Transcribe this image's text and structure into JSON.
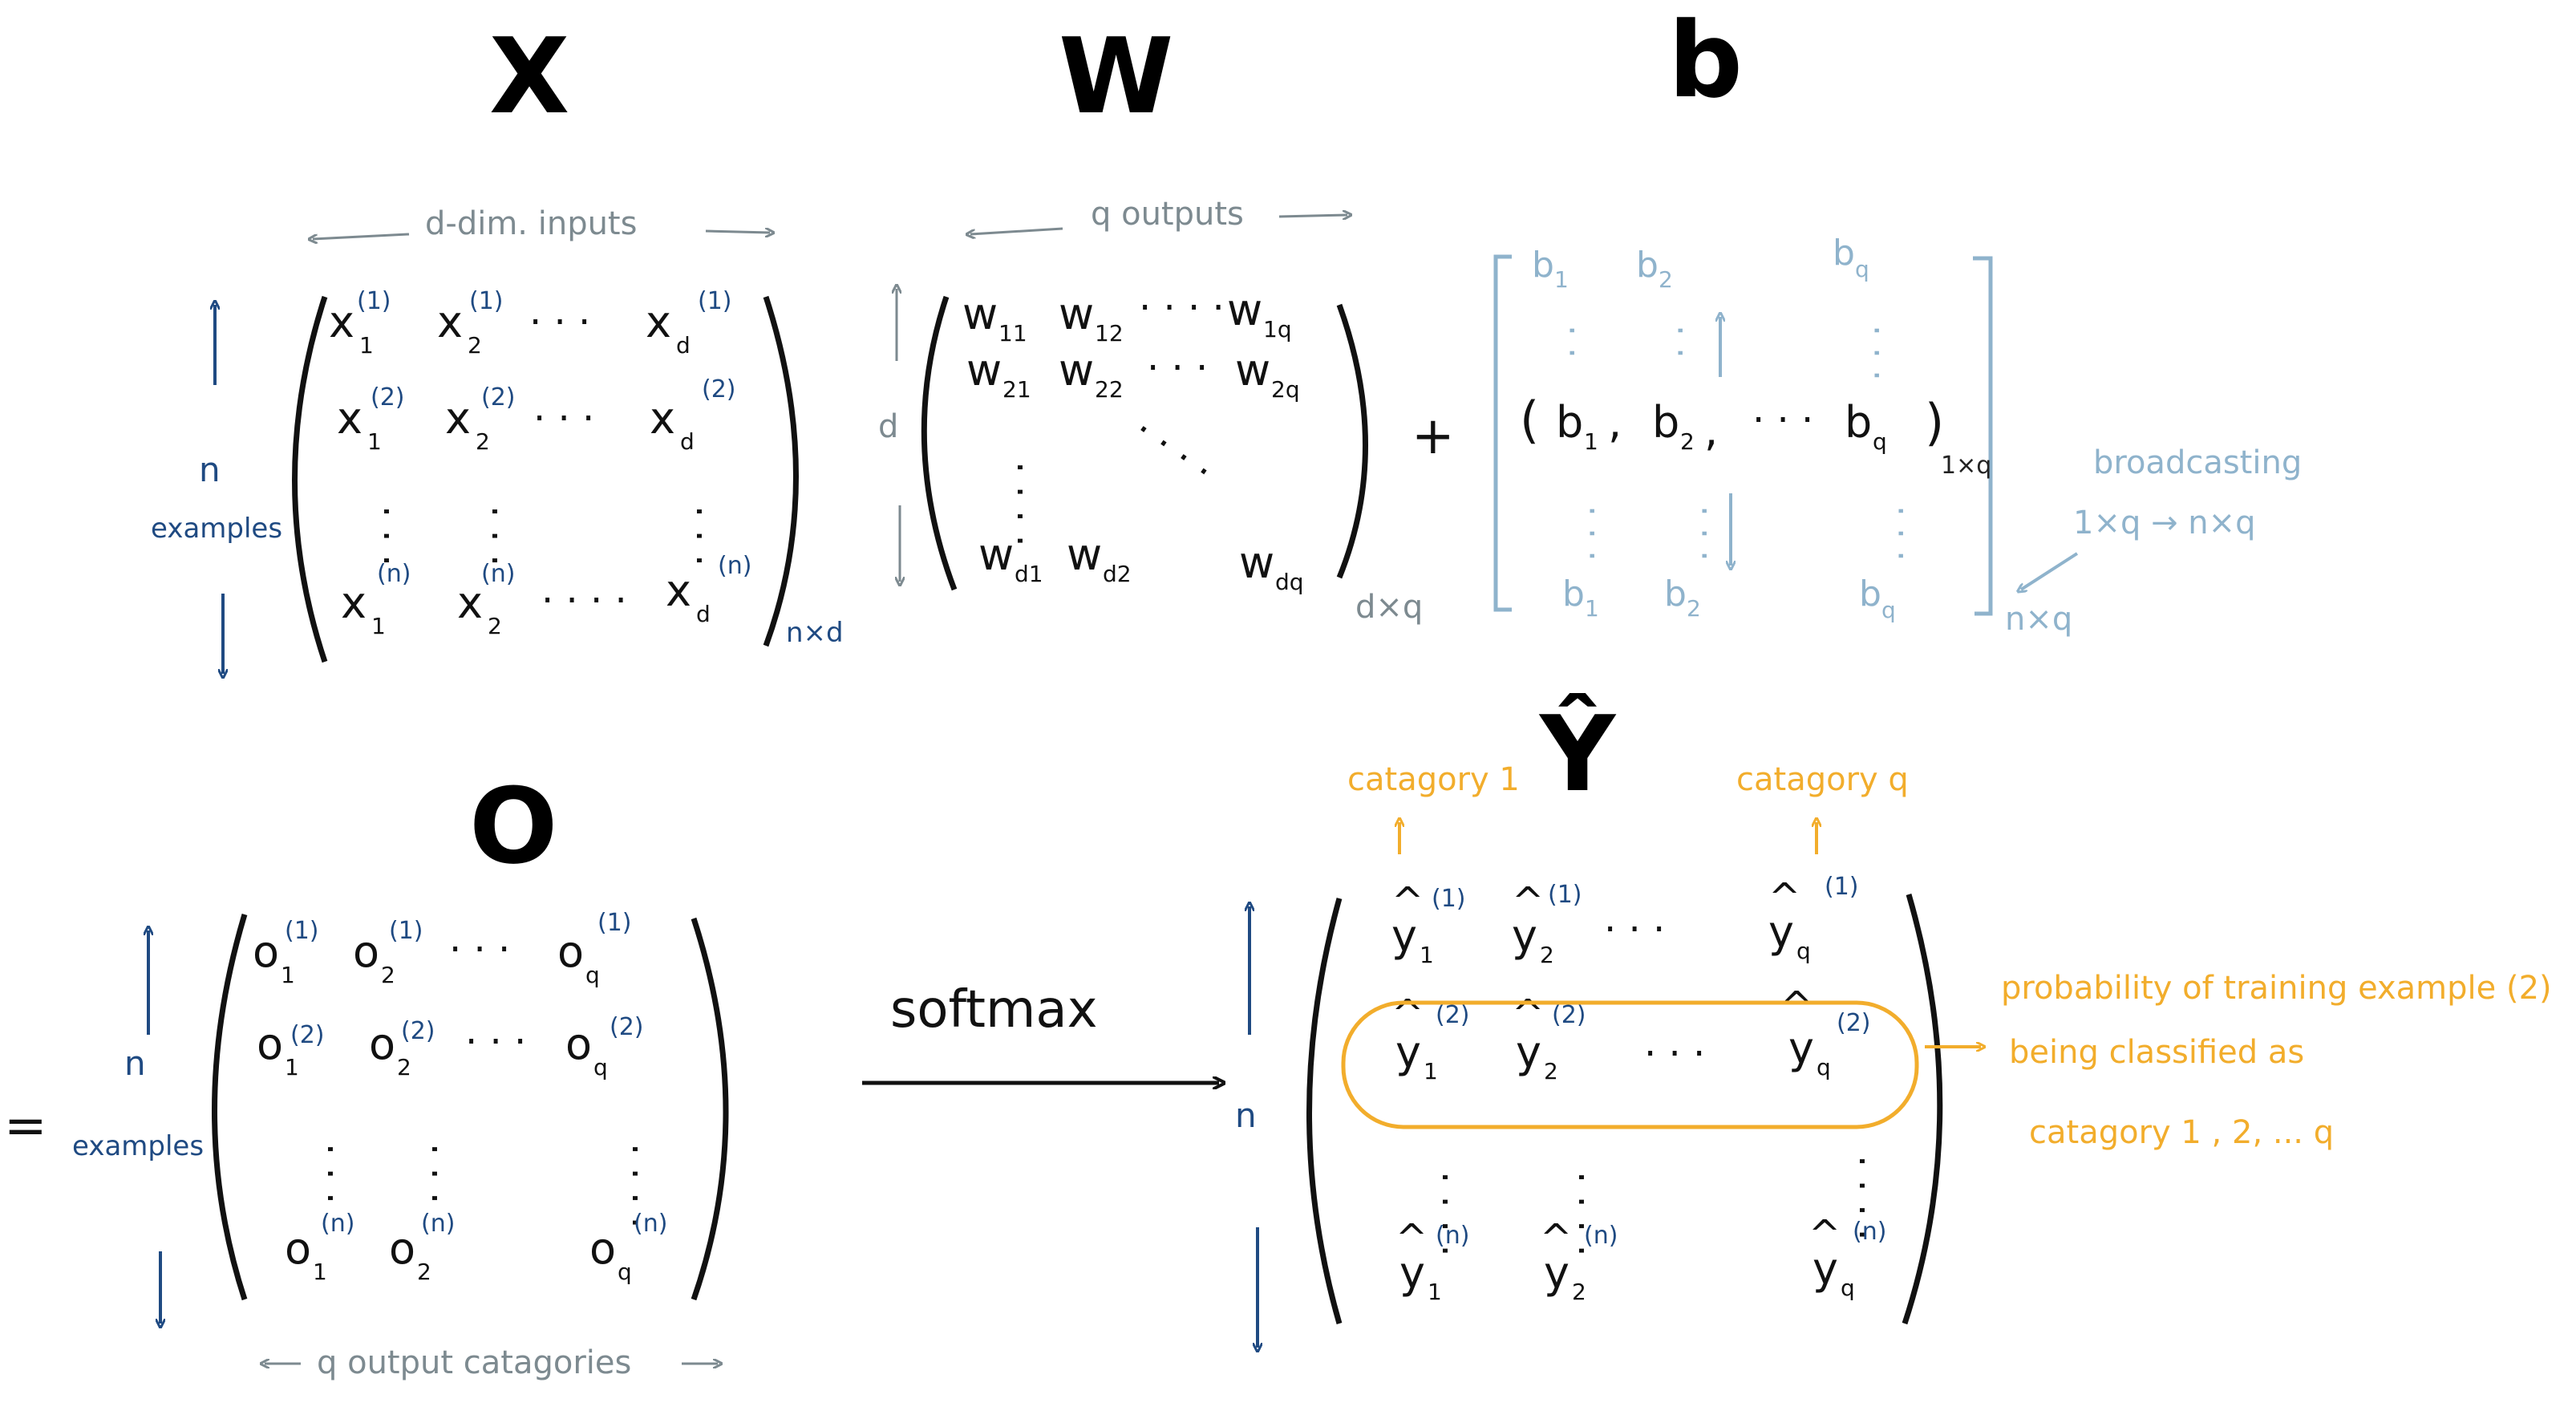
{
  "titles": {
    "x": "X",
    "w": "W",
    "b": "b",
    "o": "O",
    "yhat": "Ŷ"
  },
  "labels": {
    "d_dim_inputs": "d-dim. inputs",
    "q_outputs": "q outputs",
    "n": "n",
    "examples": "examples",
    "d": "d",
    "plus": "+",
    "equals": "=",
    "x_dims": "n×d",
    "w_dims": "d×q",
    "b_dims": "n×q",
    "b_row_dims": "1×q",
    "broadcasting": "broadcasting",
    "broadcast_map": "1×q → n×q",
    "softmax": "softmax",
    "category1": "catagory 1",
    "categoryq": "catagory q",
    "q_output_categories": "q output catagories",
    "prob_line1": "probability of training example (2)",
    "prob_line2": "being classified as",
    "prob_line3": "catagory  1 ,  2,  ...  q"
  },
  "matrices": {
    "x": {
      "rows": [
        [
          {
            "base": "x",
            "sub": "1",
            "sup": "(1)"
          },
          {
            "base": "x",
            "sub": "2",
            "sup": "(1)"
          },
          {
            "base": "x",
            "sub": "d",
            "sup": "(1)"
          }
        ],
        [
          {
            "base": "x",
            "sub": "1",
            "sup": "(2)"
          },
          {
            "base": "x",
            "sub": "2",
            "sup": "(2)"
          },
          {
            "base": "x",
            "sub": "d",
            "sup": "(2)"
          }
        ],
        [
          {
            "base": "x",
            "sub": "1",
            "sup": "(n)"
          },
          {
            "base": "x",
            "sub": "2",
            "sup": "(n)"
          },
          {
            "base": "x",
            "sub": "d",
            "sup": "(n)"
          }
        ]
      ]
    },
    "w": {
      "row1": [
        {
          "base": "w",
          "sub": "11"
        },
        {
          "base": "w",
          "sub": "12"
        },
        {
          "base": "w",
          "sub": "1q"
        }
      ],
      "row2": [
        {
          "base": "w",
          "sub": "21"
        },
        {
          "base": "w",
          "sub": "22"
        },
        {
          "base": "w",
          "sub": "2q"
        }
      ],
      "row3": [
        {
          "base": "w",
          "sub": "d1"
        },
        {
          "base": "w",
          "sub": "d2"
        },
        {
          "base": "w",
          "sub": "dq"
        }
      ]
    },
    "b": {
      "top": [
        {
          "base": "b",
          "sub": "1"
        },
        {
          "base": "b",
          "sub": "2"
        },
        {
          "base": "b",
          "sub": "q"
        }
      ],
      "mid": [
        {
          "base": "b",
          "sub": "1"
        },
        {
          "base": "b",
          "sub": "2"
        },
        {
          "base": "b",
          "sub": "q"
        }
      ],
      "bot": [
        {
          "base": "b",
          "sub": "1"
        },
        {
          "base": "b",
          "sub": "2"
        },
        {
          "base": "b",
          "sub": "q"
        }
      ]
    },
    "o": {
      "rows": [
        [
          {
            "base": "o",
            "sub": "1",
            "sup": "(1)"
          },
          {
            "base": "o",
            "sub": "2",
            "sup": "(1)"
          },
          {
            "base": "o",
            "sub": "q",
            "sup": "(1)"
          }
        ],
        [
          {
            "base": "o",
            "sub": "1",
            "sup": "(2)"
          },
          {
            "base": "o",
            "sub": "2",
            "sup": "(2)"
          },
          {
            "base": "o",
            "sub": "q",
            "sup": "(2)"
          }
        ],
        [
          {
            "base": "o",
            "sub": "1",
            "sup": "(n)"
          },
          {
            "base": "o",
            "sub": "2",
            "sup": "(n)"
          },
          {
            "base": "o",
            "sub": "q",
            "sup": "(n)"
          }
        ]
      ]
    },
    "yhat": {
      "rows": [
        [
          {
            "base": "y",
            "sub": "1",
            "sup": "(1)"
          },
          {
            "base": "y",
            "sub": "2",
            "sup": "(1)"
          },
          {
            "base": "y",
            "sub": "q",
            "sup": "(1)"
          }
        ],
        [
          {
            "base": "y",
            "sub": "1",
            "sup": "(2)"
          },
          {
            "base": "y",
            "sub": "2",
            "sup": "(2)"
          },
          {
            "base": "y",
            "sub": "q",
            "sup": "(2)"
          }
        ],
        [
          {
            "base": "y",
            "sub": "1",
            "sup": "(n)"
          },
          {
            "base": "y",
            "sub": "2",
            "sup": "(n)"
          },
          {
            "base": "y",
            "sub": "q",
            "sup": "(n)"
          }
        ]
      ]
    }
  },
  "colors": {
    "black": "#111111",
    "navy": "#1f4a82",
    "gray": "#7d8a90",
    "light_blue": "#8fb3cc",
    "orange": "#f2ad2c"
  }
}
